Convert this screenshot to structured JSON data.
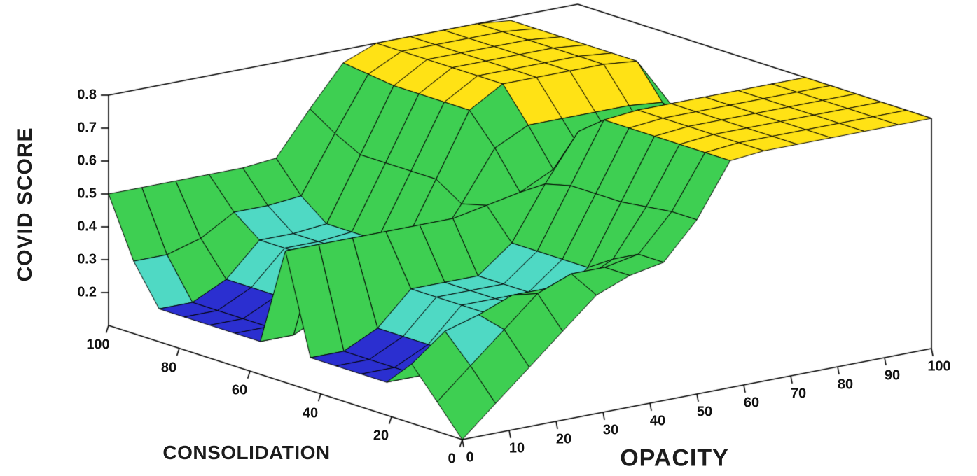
{
  "figure": {
    "background": "#ffffff",
    "axis_color": "#000000",
    "text_color": "#1c1c1c"
  },
  "chart_data": {
    "type": "surface3d",
    "title": "",
    "xlabel": "OPACITY",
    "ylabel": "CONSOLIDATION",
    "zlabel": "COVID SCORE",
    "x_range": [
      0,
      100
    ],
    "y_range": [
      0,
      100
    ],
    "z_range": [
      0.1,
      0.8
    ],
    "x_ticks": [
      0,
      10,
      20,
      30,
      40,
      50,
      60,
      70,
      80,
      90,
      100
    ],
    "y_ticks": [
      0,
      20,
      40,
      60,
      80,
      100
    ],
    "z_ticks": [
      0.2,
      0.3,
      0.4,
      0.5,
      0.6,
      0.7,
      0.8
    ],
    "view": {
      "azimuth": -37.5,
      "elevation": 30
    },
    "mesh_line_color": "#000000",
    "steep_face_color": "#3ecf52",
    "colormap": [
      {
        "max": 0.265,
        "color": "#2b2fd0"
      },
      {
        "max": 0.44,
        "color": "#4fd9c4"
      },
      {
        "max": 0.705,
        "color": "#3ecf52"
      },
      {
        "max": 1.0,
        "color": "#ffe215"
      }
    ],
    "surface": {
      "x": [
        0,
        7.1,
        14.3,
        21.4,
        28.6,
        35.7,
        42.9,
        50,
        57.1,
        64.3,
        71.4,
        78.6,
        85.7,
        92.9,
        100
      ],
      "y": [
        0,
        7.1,
        14.3,
        21.4,
        28.6,
        35.7,
        42.9,
        50,
        57.1,
        64.3,
        71.4,
        78.6,
        85.7,
        92.9,
        100
      ],
      "z": [
        [
          0.1,
          0.19,
          0.28,
          0.37,
          0.46,
          0.5,
          0.52,
          0.63,
          0.79,
          0.8,
          0.8,
          0.8,
          0.8,
          0.8,
          0.8
        ],
        [
          0.19,
          0.28,
          0.37,
          0.46,
          0.5,
          0.5,
          0.52,
          0.63,
          0.79,
          0.8,
          0.8,
          0.8,
          0.8,
          0.8,
          0.8
        ],
        [
          0.28,
          0.36,
          0.39,
          0.43,
          0.43,
          0.43,
          0.48,
          0.62,
          0.79,
          0.8,
          0.8,
          0.8,
          0.8,
          0.8,
          0.8
        ],
        [
          0.2,
          0.2,
          0.25,
          0.35,
          0.35,
          0.35,
          0.43,
          0.61,
          0.79,
          0.8,
          0.8,
          0.8,
          0.8,
          0.8,
          0.8
        ],
        [
          0.2,
          0.2,
          0.25,
          0.35,
          0.35,
          0.35,
          0.43,
          0.61,
          0.79,
          0.8,
          0.8,
          0.8,
          0.8,
          0.8,
          0.8
        ],
        [
          0.2,
          0.2,
          0.25,
          0.35,
          0.35,
          0.35,
          0.43,
          0.61,
          0.79,
          0.8,
          0.8,
          0.8,
          0.8,
          0.8,
          0.8
        ],
        [
          0.2,
          0.2,
          0.25,
          0.35,
          0.35,
          0.35,
          0.43,
          0.59,
          0.73,
          0.74,
          0.74,
          0.74,
          0.74,
          0.74,
          0.74
        ],
        [
          0.5,
          0.5,
          0.5,
          0.5,
          0.5,
          0.5,
          0.52,
          0.54,
          0.59,
          0.6,
          0.6,
          0.6,
          0.6,
          0.6,
          0.6
        ],
        [
          0.2,
          0.2,
          0.25,
          0.35,
          0.35,
          0.36,
          0.5,
          0.65,
          0.7,
          0.7,
          0.7,
          0.7,
          0.69,
          0.59,
          0.5
        ],
        [
          0.2,
          0.2,
          0.25,
          0.35,
          0.35,
          0.36,
          0.55,
          0.74,
          0.8,
          0.8,
          0.8,
          0.8,
          0.79,
          0.64,
          0.5
        ],
        [
          0.2,
          0.2,
          0.25,
          0.35,
          0.35,
          0.36,
          0.55,
          0.74,
          0.8,
          0.8,
          0.8,
          0.8,
          0.79,
          0.64,
          0.5
        ],
        [
          0.2,
          0.2,
          0.25,
          0.35,
          0.35,
          0.36,
          0.55,
          0.74,
          0.8,
          0.8,
          0.8,
          0.8,
          0.79,
          0.64,
          0.5
        ],
        [
          0.2,
          0.2,
          0.25,
          0.35,
          0.35,
          0.36,
          0.55,
          0.74,
          0.8,
          0.8,
          0.8,
          0.8,
          0.79,
          0.64,
          0.5
        ],
        [
          0.32,
          0.32,
          0.35,
          0.41,
          0.41,
          0.42,
          0.59,
          0.75,
          0.8,
          0.8,
          0.8,
          0.8,
          0.79,
          0.64,
          0.5
        ],
        [
          0.5,
          0.5,
          0.5,
          0.5,
          0.5,
          0.51,
          0.64,
          0.76,
          0.8,
          0.8,
          0.8,
          0.8,
          0.79,
          0.64,
          0.5
        ]
      ]
    }
  }
}
